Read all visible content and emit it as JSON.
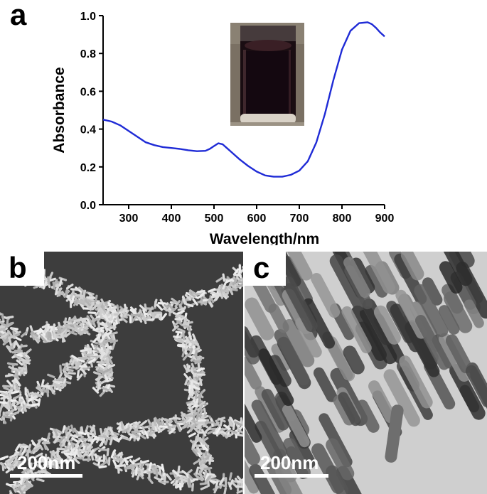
{
  "panels": {
    "a": {
      "letter": "a"
    },
    "b": {
      "letter": "b",
      "scale_label": "200nm"
    },
    "c": {
      "letter": "c",
      "scale_label": "200nm"
    }
  },
  "chart_data": {
    "type": "line",
    "xlabel": "Wavelength/nm",
    "ylabel": "Absorbance",
    "xlim": [
      240,
      900
    ],
    "ylim": [
      0.0,
      1.0
    ],
    "xticks": [
      300,
      400,
      500,
      600,
      700,
      800,
      900
    ],
    "yticks": [
      0.0,
      0.2,
      0.4,
      0.6,
      0.8,
      1.0
    ],
    "grid": false,
    "series": [
      {
        "color": "#1f2bd6",
        "x": [
          240,
          260,
          280,
          300,
          320,
          340,
          360,
          380,
          400,
          420,
          440,
          460,
          480,
          490,
          500,
          510,
          520,
          530,
          540,
          560,
          580,
          600,
          620,
          640,
          660,
          680,
          700,
          720,
          740,
          760,
          780,
          800,
          820,
          840,
          860,
          870,
          880,
          890,
          900
        ],
        "y": [
          0.45,
          0.44,
          0.42,
          0.39,
          0.36,
          0.33,
          0.315,
          0.305,
          0.3,
          0.295,
          0.288,
          0.283,
          0.285,
          0.295,
          0.31,
          0.325,
          0.32,
          0.3,
          0.28,
          0.24,
          0.205,
          0.175,
          0.155,
          0.148,
          0.148,
          0.158,
          0.18,
          0.23,
          0.33,
          0.48,
          0.66,
          0.82,
          0.92,
          0.96,
          0.965,
          0.955,
          0.935,
          0.91,
          0.89
        ]
      }
    ]
  }
}
